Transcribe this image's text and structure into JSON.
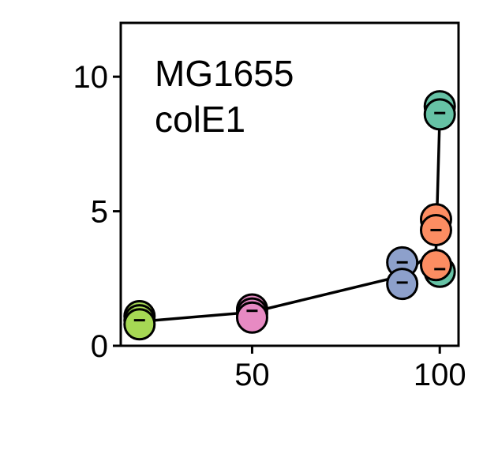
{
  "chart_data": {
    "type": "scatter",
    "title": "",
    "xlabel": "",
    "ylabel": "",
    "xlim": [
      15,
      105
    ],
    "ylim": [
      0,
      12
    ],
    "xticks": [
      50,
      100
    ],
    "yticks": [
      0,
      5,
      10
    ],
    "grid": false,
    "annotation": [
      "MG1655",
      "colE1"
    ],
    "mean_line": {
      "x": [
        20,
        50,
        90,
        99,
        100
      ],
      "y": [
        0.9,
        1.25,
        2.6,
        3.6,
        8.6
      ]
    },
    "points": [
      {
        "x": 20,
        "y": 1.1,
        "color": "#a6d854"
      },
      {
        "x": 20,
        "y": 0.95,
        "color": "#a6d854"
      },
      {
        "x": 20,
        "y": 0.8,
        "color": "#a6d854"
      },
      {
        "x": 50,
        "y": 1.35,
        "color": "#e78ac3"
      },
      {
        "x": 50,
        "y": 1.2,
        "color": "#e78ac3"
      },
      {
        "x": 50,
        "y": 1.05,
        "color": "#e78ac3"
      },
      {
        "x": 90,
        "y": 3.1,
        "color": "#8da0cb"
      },
      {
        "x": 90,
        "y": 2.3,
        "color": "#8da0cb"
      },
      {
        "x": 100,
        "y": 8.9,
        "color": "#66c2a5"
      },
      {
        "x": 100,
        "y": 8.6,
        "color": "#66c2a5"
      },
      {
        "x": 100,
        "y": 2.75,
        "color": "#66c2a5"
      },
      {
        "x": 99,
        "y": 4.7,
        "color": "#fc8d62"
      },
      {
        "x": 99,
        "y": 4.3,
        "color": "#fc8d62"
      },
      {
        "x": 99,
        "y": 3.0,
        "color": "#fc8d62"
      }
    ],
    "error_markers": [
      {
        "x": 20,
        "y": 0.95
      },
      {
        "x": 50,
        "y": 1.3
      },
      {
        "x": 90,
        "y": 3.1
      },
      {
        "x": 90,
        "y": 2.35
      },
      {
        "x": 100,
        "y": 8.65
      },
      {
        "x": 99,
        "y": 4.3
      },
      {
        "x": 100,
        "y": 2.85
      }
    ]
  }
}
